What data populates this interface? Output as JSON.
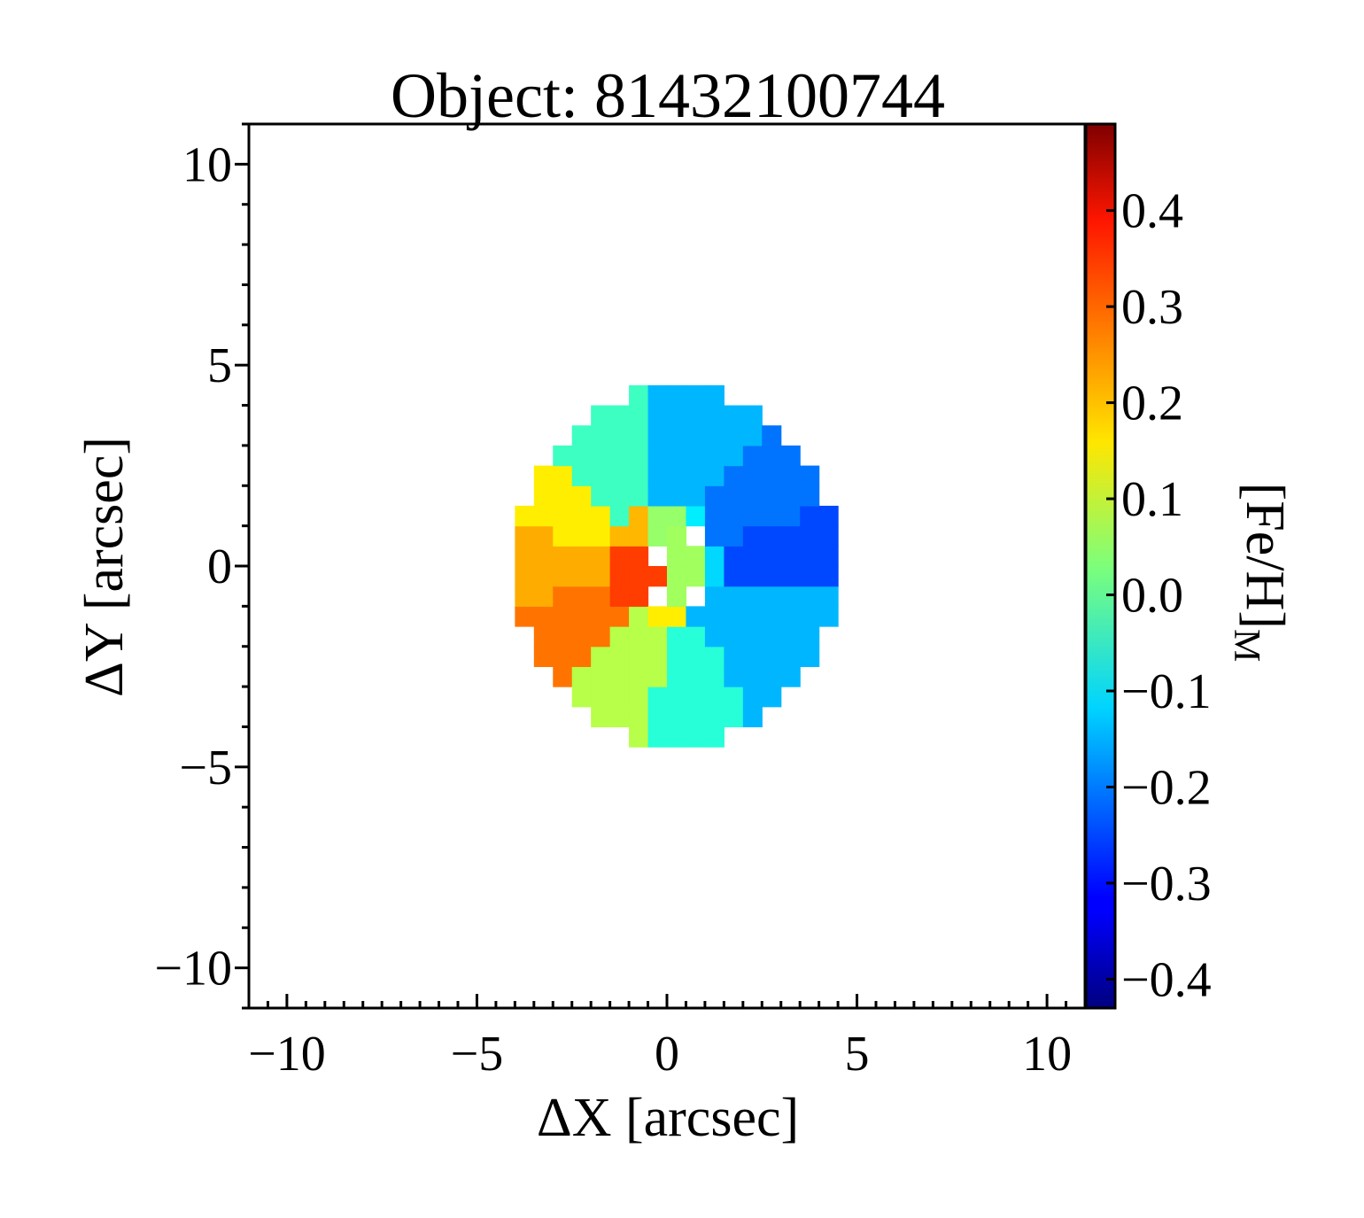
{
  "chart_data": {
    "type": "heatmap",
    "title": "Object: 81432100744",
    "xlabel": "ΔX [arcsec]",
    "ylabel": "ΔY [arcsec]",
    "colorbar_label": "[Fe/H]",
    "colorbar_label_sub": "M",
    "xlim": [
      -11,
      11
    ],
    "ylim": [
      -11,
      11
    ],
    "x_ticks": [
      -10,
      -5,
      0,
      5,
      10
    ],
    "x_tick_labels": [
      "−10",
      "−5",
      "0",
      "5",
      "10"
    ],
    "y_ticks": [
      10,
      5,
      0,
      -5,
      -10
    ],
    "y_tick_labels": [
      "10",
      "5",
      "0",
      "−5",
      "−10"
    ],
    "colorbar_range": [
      -0.43,
      0.49
    ],
    "colorbar_ticks": [
      0.4,
      0.3,
      0.2,
      0.1,
      0.0,
      -0.1,
      -0.2,
      -0.3,
      -0.4
    ],
    "colorbar_tick_labels": [
      "0.4",
      "0.3",
      "0.2",
      "0.1",
      "0.0",
      "−0.1",
      "−0.2",
      "−0.3",
      "−0.4"
    ],
    "colormap": "jet",
    "map_extent": {
      "center": [
        0.3,
        0
      ],
      "radius_x": 4.3,
      "radius_y": 4.4
    },
    "bins": [
      {
        "id": "top-left-cyan",
        "theta": [
          100,
          140
        ],
        "r": [
          0.8,
          4.5
        ],
        "value": -0.03
      },
      {
        "id": "top-right-lightblue",
        "theta": [
          55,
          100
        ],
        "r": [
          1.4,
          4.5
        ],
        "value": -0.15
      },
      {
        "id": "upper-right-blue",
        "theta": [
          20,
          55
        ],
        "r": [
          1.4,
          4.5
        ],
        "value": -0.21
      },
      {
        "id": "right-darkblue",
        "theta": [
          -10,
          20
        ],
        "r": [
          1.6,
          4.5
        ],
        "value": -0.25
      },
      {
        "id": "lower-right-lightblue",
        "theta": [
          -60,
          -10
        ],
        "r": [
          1.3,
          4.5
        ],
        "value": -0.15
      },
      {
        "id": "bottom-cyan-green",
        "theta": [
          -95,
          -60
        ],
        "r": [
          0.9,
          4.5
        ],
        "value": -0.05
      },
      {
        "id": "bottom-left-lightgreen",
        "theta": [
          -130,
          -95
        ],
        "r": [
          0.8,
          4.5
        ],
        "value": 0.08
      },
      {
        "id": "lower-left-orange",
        "theta": [
          -165,
          -130
        ],
        "r": [
          1.2,
          4.5
        ],
        "value": 0.27
      },
      {
        "id": "left-amber",
        "theta": [
          165,
          195
        ],
        "r": [
          1.7,
          4.5
        ],
        "value": 0.22
      },
      {
        "id": "upper-left-yellow",
        "theta": [
          140,
          165
        ],
        "r": [
          1.5,
          4.5
        ],
        "value": 0.16
      },
      {
        "id": "inner-left-amber",
        "theta": [
          120,
          160
        ],
        "r": [
          0.5,
          1.5
        ],
        "value": 0.21
      },
      {
        "id": "inner-left-orange",
        "theta": [
          160,
          235
        ],
        "r": [
          0.3,
          1.6
        ],
        "value": 0.32
      },
      {
        "id": "inner-yellow",
        "theta": [
          -110,
          -75
        ],
        "r": [
          1.1,
          1.6
        ],
        "value": 0.16
      },
      {
        "id": "inner-green",
        "theta": [
          75,
          120
        ],
        "r": [
          0.2,
          1.3
        ],
        "value": 0.05
      },
      {
        "id": "inner-lightblue",
        "theta": [
          -20,
          30
        ],
        "r": [
          0.9,
          1.6
        ],
        "value": -0.12
      },
      {
        "id": "inner-cyan",
        "theta": [
          50,
          75
        ],
        "r": [
          1.2,
          1.6
        ],
        "value": -0.1
      },
      {
        "id": "center-green",
        "theta": [
          -75,
          75
        ],
        "r": [
          0.0,
          0.9
        ],
        "value": 0.06
      }
    ]
  }
}
